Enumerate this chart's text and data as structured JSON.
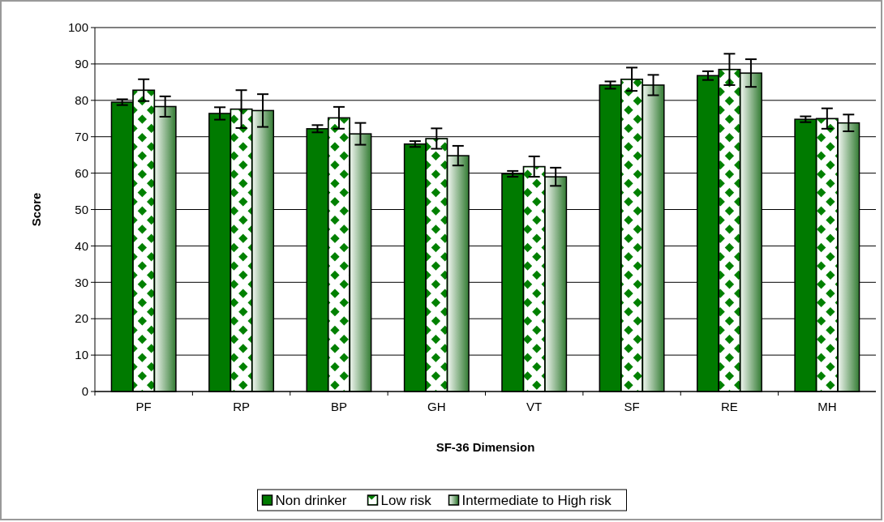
{
  "chart_data": {
    "type": "bar",
    "xlabel": "SF-36 Dimension",
    "ylabel": "Score",
    "categories": [
      "PF",
      "RP",
      "BP",
      "GH",
      "VT",
      "SF",
      "RE",
      "MH"
    ],
    "series": [
      {
        "name": "Non drinker",
        "color": "#007a00",
        "values": [
          79.5,
          76.4,
          72.2,
          68,
          59.8,
          84.2,
          86.8,
          74.8
        ],
        "errors": [
          0.8,
          1.7,
          1,
          0.8,
          0.8,
          1,
          1.2,
          0.8
        ]
      },
      {
        "name": "Low risk",
        "color": "#008000",
        "values": [
          82.8,
          77.6,
          75.2,
          69.5,
          61.8,
          85.8,
          88.5,
          75
        ],
        "errors": [
          3,
          5.2,
          3,
          2.8,
          2.8,
          3.2,
          4.3,
          2.8
        ]
      },
      {
        "name": "Intermediate to High risk",
        "color": "#3a803a",
        "values": [
          78.3,
          77.2,
          70.8,
          64.8,
          59,
          84.2,
          87.5,
          73.8
        ],
        "errors": [
          2.8,
          4.5,
          3,
          2.7,
          2.5,
          2.8,
          3.8,
          2.3
        ]
      }
    ],
    "ylim": [
      0,
      100
    ],
    "yticks": [
      0,
      10,
      20,
      30,
      40,
      50,
      60,
      70,
      80,
      90,
      100
    ],
    "grid": "y",
    "legend": "bottom"
  }
}
